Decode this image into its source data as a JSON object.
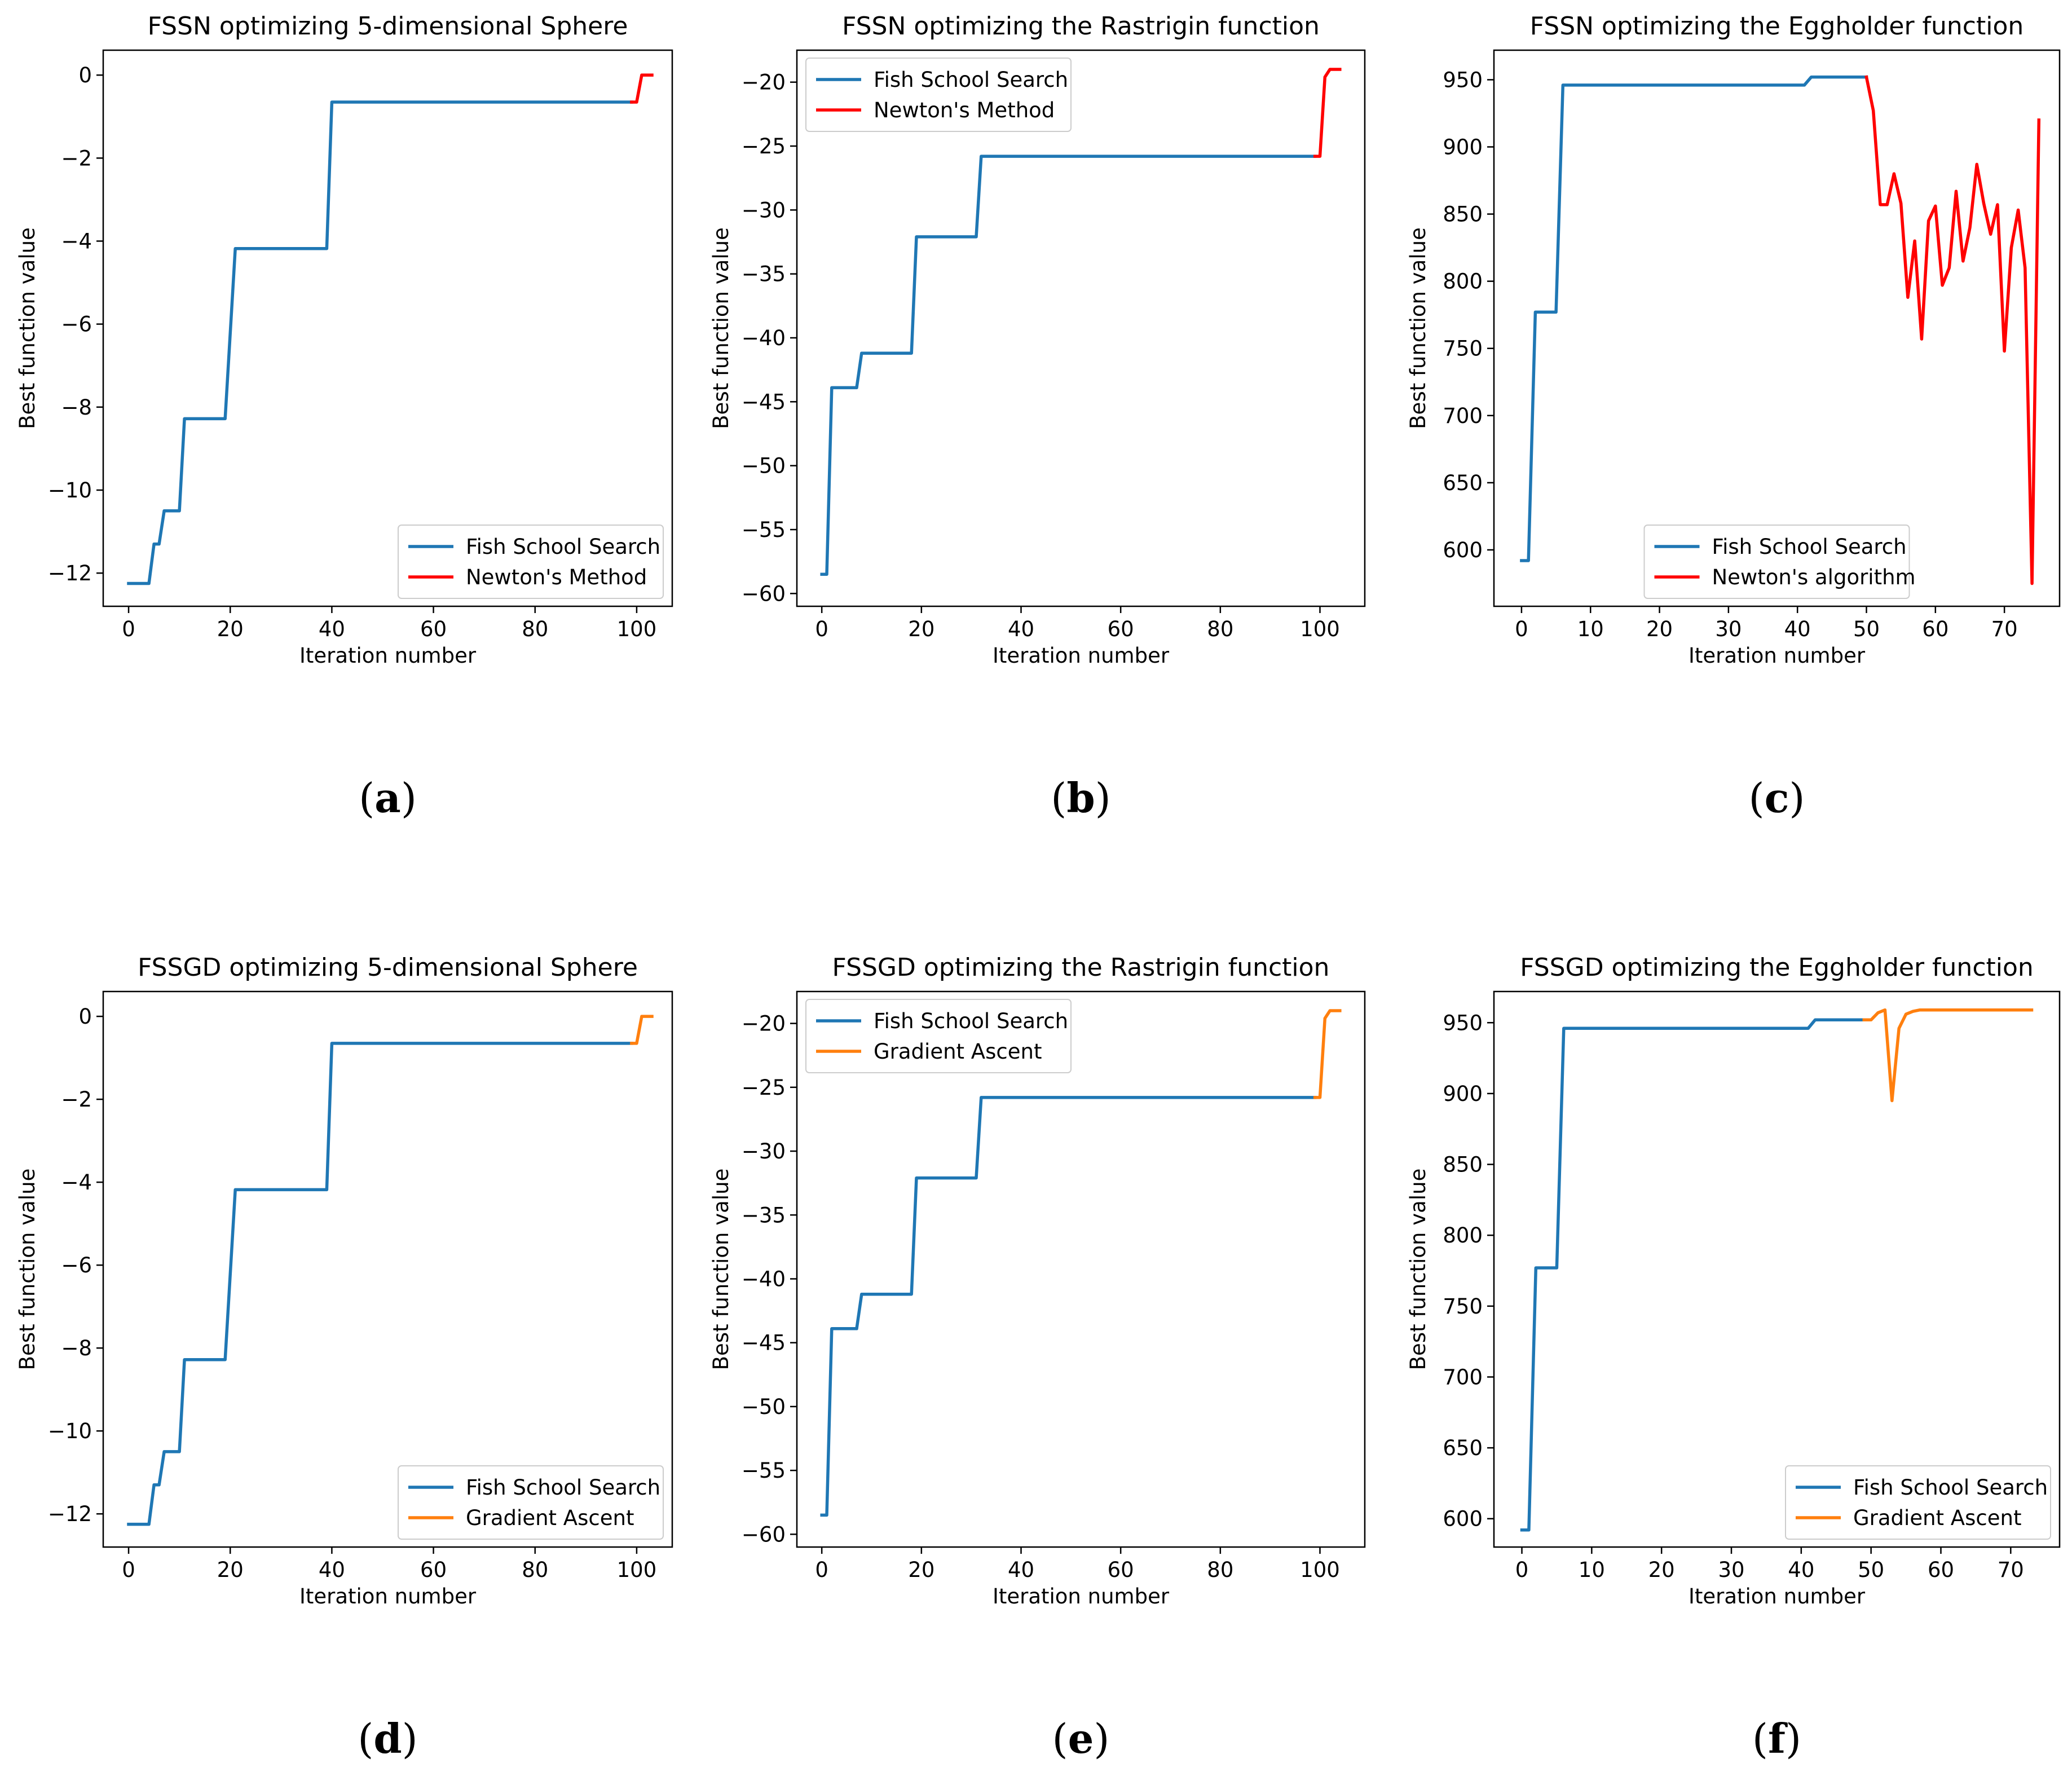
{
  "colors": {
    "fish_school": "#1f77b4",
    "newton": "#ff0000",
    "gradient": "#ff7f0e"
  },
  "chart_data": [
    {
      "type": "line",
      "panel": "(a)",
      "panel_letter": "a",
      "title": "FSSN optimizing 5-dimensional Sphere",
      "xlabel": "Iteration number",
      "ylabel": "Best function value",
      "xlim": [
        -5,
        107
      ],
      "ylim": [
        -12.8,
        0.6
      ],
      "xticks": [
        0,
        20,
        40,
        60,
        80,
        100
      ],
      "xtick_labels": [
        "0",
        "20",
        "40",
        "60",
        "80",
        "100"
      ],
      "yticks": [
        0,
        -2,
        -4,
        -6,
        -8,
        -10,
        -12
      ],
      "ytick_labels": [
        "0",
        "−2",
        "−4",
        "−6",
        "−8",
        "−10",
        "−12"
      ],
      "legend": {
        "position": "lower-right",
        "entries": [
          "Fish School Search",
          "Newton's Method"
        ]
      },
      "series": [
        {
          "name": "Fish School Search",
          "color_key": "fish_school",
          "x": [
            0,
            4,
            5,
            6,
            7,
            10,
            11,
            19,
            21,
            39,
            40,
            99
          ],
          "y": [
            -12.25,
            -12.25,
            -11.3,
            -11.3,
            -10.5,
            -10.5,
            -8.28,
            -8.28,
            -4.18,
            -4.18,
            -0.65,
            -0.65
          ]
        },
        {
          "name": "Newton's Method",
          "color_key": "newton",
          "x": [
            99,
            100,
            101,
            103
          ],
          "y": [
            -0.65,
            -0.65,
            0,
            0
          ]
        }
      ]
    },
    {
      "type": "line",
      "panel": "(b)",
      "panel_letter": "b",
      "title": "FSSN optimizing the Rastrigin function",
      "xlabel": "Iteration number",
      "ylabel": "Best function value",
      "xlim": [
        -5,
        109
      ],
      "ylim": [
        -61,
        -17.5
      ],
      "xticks": [
        0,
        20,
        40,
        60,
        80,
        100
      ],
      "xtick_labels": [
        "0",
        "20",
        "40",
        "60",
        "80",
        "100"
      ],
      "yticks": [
        -20,
        -25,
        -30,
        -35,
        -40,
        -45,
        -50,
        -55,
        -60
      ],
      "ytick_labels": [
        "−20",
        "−25",
        "−30",
        "−35",
        "−40",
        "−45",
        "−50",
        "−55",
        "−60"
      ],
      "legend": {
        "position": "upper-left",
        "entries": [
          "Fish School Search",
          "Newton's Method"
        ]
      },
      "series": [
        {
          "name": "Fish School Search",
          "color_key": "fish_school",
          "x": [
            0,
            1,
            2,
            7,
            8,
            18,
            19,
            31,
            32,
            99
          ],
          "y": [
            -58.5,
            -58.5,
            -43.9,
            -43.9,
            -41.2,
            -41.2,
            -32.1,
            -32.1,
            -25.8,
            -25.8
          ]
        },
        {
          "name": "Newton's Method",
          "color_key": "newton",
          "x": [
            99,
            100,
            101,
            102,
            104
          ],
          "y": [
            -25.8,
            -25.8,
            -19.6,
            -19.0,
            -19.0
          ]
        }
      ]
    },
    {
      "type": "line",
      "panel": "(c)",
      "panel_letter": "c",
      "title": "FSSN optimizing the Eggholder function",
      "xlabel": "Iteration number",
      "ylabel": "Best function value",
      "xlim": [
        -4,
        78
      ],
      "ylim": [
        558,
        972
      ],
      "xticks": [
        0,
        10,
        20,
        30,
        40,
        50,
        60,
        70
      ],
      "xtick_labels": [
        "0",
        "10",
        "20",
        "30",
        "40",
        "50",
        "60",
        "70"
      ],
      "yticks": [
        600,
        650,
        700,
        750,
        800,
        850,
        900,
        950
      ],
      "ytick_labels": [
        "600",
        "650",
        "700",
        "750",
        "800",
        "850",
        "900",
        "950"
      ],
      "legend": {
        "position": "lower-center",
        "entries": [
          "Fish School Search",
          "Newton's algorithm"
        ]
      },
      "series": [
        {
          "name": "Fish School Search",
          "color_key": "fish_school",
          "x": [
            0,
            1,
            2,
            5,
            6,
            41,
            42,
            50
          ],
          "y": [
            592,
            592,
            777,
            777,
            946,
            946,
            952,
            952
          ]
        },
        {
          "name": "Newton's algorithm",
          "color_key": "newton",
          "x": [
            50,
            51,
            52,
            53,
            54,
            55,
            56,
            57,
            58,
            59,
            60,
            61,
            62,
            63,
            64,
            65,
            66,
            67,
            68,
            69,
            70,
            71,
            72,
            73,
            74,
            75
          ],
          "y": [
            952,
            927,
            857,
            857,
            880,
            858,
            788,
            830,
            757,
            845,
            856,
            797,
            810,
            867,
            815,
            840,
            887,
            858,
            835,
            857,
            748,
            825,
            853,
            810,
            575,
            920
          ]
        }
      ]
    },
    {
      "type": "line",
      "panel": "(d)",
      "panel_letter": "d",
      "title": "FSSGD optimizing 5-dimensional Sphere",
      "xlabel": "Iteration number",
      "ylabel": "Best function value",
      "xlim": [
        -5,
        107
      ],
      "ylim": [
        -12.8,
        0.6
      ],
      "xticks": [
        0,
        20,
        40,
        60,
        80,
        100
      ],
      "xtick_labels": [
        "0",
        "20",
        "40",
        "60",
        "80",
        "100"
      ],
      "yticks": [
        0,
        -2,
        -4,
        -6,
        -8,
        -10,
        -12
      ],
      "ytick_labels": [
        "0",
        "−2",
        "−4",
        "−6",
        "−8",
        "−10",
        "−12"
      ],
      "legend": {
        "position": "lower-right",
        "entries": [
          "Fish School Search",
          "Gradient Ascent"
        ]
      },
      "series": [
        {
          "name": "Fish School Search",
          "color_key": "fish_school",
          "x": [
            0,
            4,
            5,
            6,
            7,
            10,
            11,
            19,
            21,
            39,
            40,
            99
          ],
          "y": [
            -12.25,
            -12.25,
            -11.3,
            -11.3,
            -10.5,
            -10.5,
            -8.28,
            -8.28,
            -4.18,
            -4.18,
            -0.65,
            -0.65
          ]
        },
        {
          "name": "Gradient Ascent",
          "color_key": "gradient",
          "x": [
            99,
            100,
            101,
            103
          ],
          "y": [
            -0.65,
            -0.65,
            0,
            0
          ]
        }
      ]
    },
    {
      "type": "line",
      "panel": "(e)",
      "panel_letter": "e",
      "title": "FSSGD optimizing the Rastrigin function",
      "xlabel": "Iteration number",
      "ylabel": "Best function value",
      "xlim": [
        -5,
        109
      ],
      "ylim": [
        -61,
        -17.5
      ],
      "xticks": [
        0,
        20,
        40,
        60,
        80,
        100
      ],
      "xtick_labels": [
        "0",
        "20",
        "40",
        "60",
        "80",
        "100"
      ],
      "yticks": [
        -20,
        -25,
        -30,
        -35,
        -40,
        -45,
        -50,
        -55,
        -60
      ],
      "ytick_labels": [
        "−20",
        "−25",
        "−30",
        "−35",
        "−40",
        "−45",
        "−50",
        "−55",
        "−60"
      ],
      "legend": {
        "position": "upper-left",
        "entries": [
          "Fish School Search",
          "Gradient Ascent"
        ]
      },
      "series": [
        {
          "name": "Fish School Search",
          "color_key": "fish_school",
          "x": [
            0,
            1,
            2,
            7,
            8,
            18,
            19,
            31,
            32,
            99
          ],
          "y": [
            -58.5,
            -58.5,
            -43.9,
            -43.9,
            -41.2,
            -41.2,
            -32.1,
            -32.1,
            -25.8,
            -25.8
          ]
        },
        {
          "name": "Gradient Ascent",
          "color_key": "gradient",
          "x": [
            99,
            100,
            101,
            102,
            104
          ],
          "y": [
            -25.8,
            -25.8,
            -19.6,
            -19.0,
            -19.0
          ]
        }
      ]
    },
    {
      "type": "line",
      "panel": "(f)",
      "panel_letter": "f",
      "title": "FSSGD optimizing the Eggholder function",
      "xlabel": "Iteration number",
      "ylabel": "Best function value",
      "xlim": [
        -4,
        77
      ],
      "ylim": [
        580,
        972
      ],
      "xticks": [
        0,
        10,
        20,
        30,
        40,
        50,
        60,
        70
      ],
      "xtick_labels": [
        "0",
        "10",
        "20",
        "30",
        "40",
        "50",
        "60",
        "70"
      ],
      "yticks": [
        600,
        650,
        700,
        750,
        800,
        850,
        900,
        950
      ],
      "ytick_labels": [
        "600",
        "650",
        "700",
        "750",
        "800",
        "850",
        "900",
        "950"
      ],
      "legend": {
        "position": "lower-right",
        "entries": [
          "Fish School Search",
          "Gradient Ascent"
        ]
      },
      "series": [
        {
          "name": "Fish School Search",
          "color_key": "fish_school",
          "x": [
            0,
            1,
            2,
            5,
            6,
            41,
            42,
            49
          ],
          "y": [
            592,
            592,
            777,
            777,
            946,
            946,
            952,
            952
          ]
        },
        {
          "name": "Gradient Ascent",
          "color_key": "gradient",
          "x": [
            49,
            50,
            51,
            52,
            53,
            54,
            55,
            56,
            57,
            58,
            60,
            65,
            70,
            73
          ],
          "y": [
            952,
            952,
            957,
            959,
            895,
            946,
            956,
            958,
            959,
            959,
            959,
            959,
            959,
            959
          ]
        }
      ]
    }
  ]
}
